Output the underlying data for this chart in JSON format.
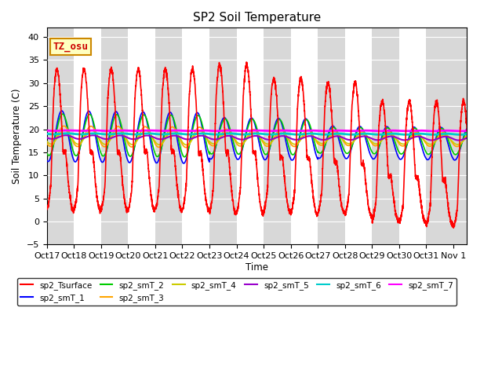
{
  "title": "SP2 Soil Temperature",
  "xlabel": "Time",
  "ylabel": "Soil Temperature (C)",
  "ylim": [
    -5,
    42
  ],
  "xlim": [
    0,
    15.5
  ],
  "xtick_labels": [
    "Oct 17",
    "Oct 18",
    "Oct 19",
    "Oct 20",
    "Oct 21",
    "Oct 22",
    "Oct 23",
    "Oct 24",
    "Oct 25",
    "Oct 26",
    "Oct 27",
    "Oct 28",
    "Oct 29",
    "Oct 30",
    "Oct 31",
    "Nov 1"
  ],
  "xtick_positions": [
    0,
    1,
    2,
    3,
    4,
    5,
    6,
    7,
    8,
    9,
    10,
    11,
    12,
    13,
    14,
    15
  ],
  "annotation_text": "TZ_osu",
  "annotation_bg": "#FFFFC0",
  "annotation_border": "#CC8800",
  "annotation_text_color": "#CC0000",
  "background_color": "#ffffff",
  "plot_bg": "#D8D8D8",
  "white_bands": [
    [
      1,
      2
    ],
    [
      3,
      4
    ],
    [
      5,
      6
    ],
    [
      7,
      8
    ],
    [
      9,
      10
    ],
    [
      11,
      12
    ],
    [
      13,
      14
    ]
  ],
  "series": {
    "sp2_Tsurface": {
      "color": "#FF0000",
      "linewidth": 1.2,
      "zorder": 10
    },
    "sp2_smT_1": {
      "color": "#0000FF",
      "linewidth": 1.2,
      "zorder": 5
    },
    "sp2_smT_2": {
      "color": "#00CC00",
      "linewidth": 1.2,
      "zorder": 5
    },
    "sp2_smT_3": {
      "color": "#FFA500",
      "linewidth": 1.2,
      "zorder": 5
    },
    "sp2_smT_4": {
      "color": "#CCCC00",
      "linewidth": 1.2,
      "zorder": 5
    },
    "sp2_smT_5": {
      "color": "#9900CC",
      "linewidth": 1.5,
      "zorder": 6
    },
    "sp2_smT_6": {
      "color": "#00CCCC",
      "linewidth": 2.0,
      "zorder": 7
    },
    "sp2_smT_7": {
      "color": "#FF00FF",
      "linewidth": 2.0,
      "zorder": 7
    }
  },
  "legend_items": [
    {
      "label": "sp2_Tsurface",
      "color": "#FF0000"
    },
    {
      "label": "sp2_smT_1",
      "color": "#0000FF"
    },
    {
      "label": "sp2_smT_2",
      "color": "#00CC00"
    },
    {
      "label": "sp2_smT_3",
      "color": "#FFA500"
    },
    {
      "label": "sp2_smT_4",
      "color": "#CCCC00"
    },
    {
      "label": "sp2_smT_5",
      "color": "#9900CC"
    },
    {
      "label": "sp2_smT_6",
      "color": "#00CCCC"
    },
    {
      "label": "sp2_smT_7",
      "color": "#FF00FF"
    }
  ]
}
